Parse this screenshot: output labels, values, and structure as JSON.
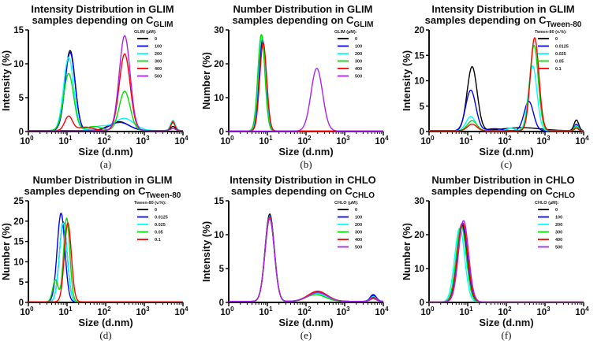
{
  "chart_data": [
    {
      "id": "a",
      "panel_label": "(a)",
      "type": "line",
      "title_line1": "Intensity Distribution in GLIM",
      "title_line2": "samples depending on C",
      "title_sub": "GLIM",
      "xlabel": "Size (d.nm)",
      "ylabel": "Intensity (%)",
      "xscale": "log",
      "xlim": [
        1,
        10000
      ],
      "ylim": [
        0,
        15
      ],
      "yticks": [
        0,
        5,
        10,
        15
      ],
      "legend_title": "GLIM (µM):",
      "legend_position": "top-right",
      "series": [
        {
          "name": "0",
          "color": "#000000",
          "peaks": [
            [
              12,
              11.8,
              0.13
            ],
            [
              220,
              1.3,
              0.25
            ],
            [
              5500,
              0.6,
              0.06
            ]
          ]
        },
        {
          "name": "100",
          "color": "#0000ff",
          "peaks": [
            [
              12,
              11.5,
              0.13
            ],
            [
              230,
              1.2,
              0.25
            ],
            [
              5500,
              1.4,
              0.06
            ]
          ]
        },
        {
          "name": "200",
          "color": "#00ffff",
          "peaks": [
            [
              11,
              10.8,
              0.13
            ],
            [
              300,
              1.8,
              0.25
            ],
            [
              5500,
              1.5,
              0.06
            ],
            [
              70,
              0.6,
              0.2
            ]
          ]
        },
        {
          "name": "300",
          "color": "#00dd00",
          "peaks": [
            [
              11,
              8.4,
              0.13
            ],
            [
              310,
              5.8,
              0.14
            ],
            [
              5500,
              1.1,
              0.06
            ],
            [
              50,
              0.6,
              0.2
            ]
          ]
        },
        {
          "name": "400",
          "color": "#ff0000",
          "peaks": [
            [
              11,
              2.1,
              0.1
            ],
            [
              310,
              11.3,
              0.14
            ],
            [
              5500,
              1.3,
              0.05
            ],
            [
              30,
              0.5,
              0.2
            ]
          ]
        },
        {
          "name": "500",
          "color": "#aa22ee",
          "peaks": [
            [
              310,
              14.0,
              0.14
            ],
            [
              5500,
              0.3,
              0.06
            ]
          ]
        }
      ]
    },
    {
      "id": "b",
      "panel_label": "(b)",
      "type": "line",
      "title_line1": "Number Distribution in GLIM",
      "title_line2": "samples depending on C",
      "title_sub": "GLIM",
      "xlabel": "Size (d.nm)",
      "ylabel": "Number (%)",
      "xscale": "log",
      "xlim": [
        1,
        10000
      ],
      "ylim": [
        0,
        30
      ],
      "yticks": [
        0,
        10,
        20,
        30
      ],
      "legend_title": "GLIM (µM):",
      "legend_position": "top-right",
      "series": [
        {
          "name": "0",
          "color": "#000000",
          "peaks": [
            [
              7.5,
              26.5,
              0.09
            ]
          ]
        },
        {
          "name": "100",
          "color": "#0000ff",
          "peaks": [
            [
              7.5,
              27,
              0.09
            ]
          ]
        },
        {
          "name": "200",
          "color": "#00ffff",
          "peaks": [
            [
              7.2,
              28,
              0.09
            ]
          ]
        },
        {
          "name": "300",
          "color": "#00dd00",
          "peaks": [
            [
              7,
              28.5,
              0.09
            ]
          ]
        },
        {
          "name": "400",
          "color": "#ff0000",
          "peaks": [
            [
              7.8,
              26,
              0.09
            ]
          ]
        },
        {
          "name": "500",
          "color": "#aa22ee",
          "peaks": [
            [
              190,
              18.5,
              0.15
            ]
          ]
        }
      ]
    },
    {
      "id": "c",
      "panel_label": "(c)",
      "type": "line",
      "title_line1": "Intensity Distribution in GLIM",
      "title_line2": "samples depending on C",
      "title_sub": "Tween-80",
      "xlabel": "Size (d.nm)",
      "ylabel": "Intensity (%)",
      "xscale": "log",
      "xlim": [
        1,
        10000
      ],
      "ylim": [
        0,
        20
      ],
      "yticks": [
        0,
        5,
        10,
        15,
        20
      ],
      "legend_title": "Tween-80 (v.%):",
      "legend_position": "top-right",
      "series": [
        {
          "name": "0",
          "color": "#000000",
          "peaks": [
            [
              13,
              12.6,
              0.13
            ],
            [
              250,
              0.6,
              0.5
            ],
            [
              6500,
              2.1,
              0.06
            ]
          ]
        },
        {
          "name": "0.0125",
          "color": "#0000ff",
          "peaks": [
            [
              12,
              8.0,
              0.13
            ],
            [
              380,
              5.8,
              0.12
            ],
            [
              6500,
              1.3,
              0.05
            ],
            [
              50,
              0.4,
              0.2
            ]
          ]
        },
        {
          "name": "0.025",
          "color": "#00ffff",
          "peaks": [
            [
              12,
              2.8,
              0.12
            ],
            [
              480,
              12.8,
              0.11
            ],
            [
              6500,
              1.0,
              0.05
            ],
            [
              130,
              0.5,
              0.1
            ]
          ]
        },
        {
          "name": "0.05",
          "color": "#00dd00",
          "peaks": [
            [
              13,
              2.0,
              0.12
            ],
            [
              520,
              16.8,
              0.11
            ],
            [
              6500,
              0.8,
              0.05
            ]
          ]
        },
        {
          "name": "0.1",
          "color": "#ff0000",
          "peaks": [
            [
              13,
              1.3,
              0.12
            ],
            [
              540,
              18.3,
              0.11
            ],
            [
              6500,
              0.5,
              0.05
            ]
          ]
        }
      ]
    },
    {
      "id": "d",
      "panel_label": "(d)",
      "type": "line",
      "title_line1": "Number Distribution in GLIM",
      "title_line2": "samples depending on C",
      "title_sub": "Tween-80",
      "xlabel": "Size (d.nm)",
      "ylabel": "Number (%)",
      "xscale": "log",
      "xlim": [
        1,
        10000
      ],
      "ylim": [
        0,
        25
      ],
      "yticks": [
        0,
        5,
        10,
        15,
        20,
        25
      ],
      "legend_title": "Tween-80 (v.%):",
      "legend_position": "top-right",
      "series": [
        {
          "name": "0",
          "color": "#000000",
          "peaks": [
            [
              8,
              19.6,
              0.1
            ]
          ]
        },
        {
          "name": "0.0125",
          "color": "#0000ff",
          "peaks": [
            [
              7,
              21.8,
              0.1
            ]
          ]
        },
        {
          "name": "0.025",
          "color": "#00ffff",
          "peaks": [
            [
              8,
              19.4,
              0.1
            ]
          ]
        },
        {
          "name": "0.05",
          "color": "#00dd00",
          "peaks": [
            [
              9.8,
              20.6,
              0.08
            ],
            [
              5,
              5.4,
              0.07
            ]
          ]
        },
        {
          "name": "0.1",
          "color": "#ff0000",
          "peaks": [
            [
              10.5,
              19.4,
              0.09
            ]
          ]
        }
      ]
    },
    {
      "id": "e",
      "panel_label": "(e)",
      "type": "line",
      "title_line1": "Intensity Distribution in CHLO",
      "title_line2": "samples depending on C",
      "title_sub": "CHLO",
      "xlabel": "Size (d.nm)",
      "ylabel": "Intensity (%)",
      "xscale": "log",
      "xlim": [
        1,
        10000
      ],
      "ylim": [
        0,
        15
      ],
      "yticks": [
        0,
        5,
        10,
        15
      ],
      "legend_title": "CHLO (µM):",
      "legend_position": "top-right",
      "series": [
        {
          "name": "0",
          "color": "#000000",
          "peaks": [
            [
              11.5,
              12.9,
              0.12
            ],
            [
              200,
              1.3,
              0.25
            ],
            [
              5500,
              0.9,
              0.08
            ]
          ]
        },
        {
          "name": "100",
          "color": "#0000ff",
          "peaks": [
            [
              11.5,
              12.6,
              0.12
            ],
            [
              200,
              1.4,
              0.25
            ],
            [
              5500,
              1.0,
              0.08
            ]
          ]
        },
        {
          "name": "200",
          "color": "#00ffff",
          "peaks": [
            [
              11.5,
              12.5,
              0.12
            ],
            [
              180,
              1.2,
              0.25
            ],
            [
              5500,
              0.7,
              0.08
            ]
          ]
        },
        {
          "name": "300",
          "color": "#00dd00",
          "peaks": [
            [
              11.5,
              12.3,
              0.12
            ],
            [
              180,
              1.0,
              0.25
            ],
            [
              5500,
              0.5,
              0.08
            ]
          ]
        },
        {
          "name": "400",
          "color": "#ff0000",
          "peaks": [
            [
              11.5,
              12.4,
              0.12
            ],
            [
              200,
              1.5,
              0.25
            ],
            [
              5500,
              0.6,
              0.08
            ]
          ]
        },
        {
          "name": "500",
          "color": "#aa22ee",
          "peaks": [
            [
              11.5,
              12.2,
              0.12
            ],
            [
              200,
              1.3,
              0.25
            ],
            [
              5500,
              0.4,
              0.08
            ]
          ]
        }
      ]
    },
    {
      "id": "f",
      "panel_label": "(f)",
      "type": "line",
      "title_line1": "Number Distribution in CHLO",
      "title_line2": "samples depending on C",
      "title_sub": "CHLO",
      "xlabel": "Size (d.nm)",
      "ylabel": "Number (%)",
      "xscale": "log",
      "xlim": [
        1,
        10000
      ],
      "ylim": [
        0,
        30
      ],
      "yticks": [
        0,
        10,
        20,
        30
      ],
      "legend_title": "CHLO (µM):",
      "legend_position": "top-right",
      "series": [
        {
          "name": "0",
          "color": "#000000",
          "peaks": [
            [
              7,
              22.8,
              0.13
            ]
          ]
        },
        {
          "name": "100",
          "color": "#0000ff",
          "peaks": [
            [
              7.2,
              23.2,
              0.13
            ]
          ]
        },
        {
          "name": "200",
          "color": "#00ffff",
          "peaks": [
            [
              6.2,
              21.8,
              0.13
            ]
          ]
        },
        {
          "name": "300",
          "color": "#00dd00",
          "peaks": [
            [
              6.8,
              22.5,
              0.13
            ]
          ]
        },
        {
          "name": "400",
          "color": "#ff0000",
          "peaks": [
            [
              7.4,
              23.4,
              0.13
            ]
          ]
        },
        {
          "name": "500",
          "color": "#aa22ee",
          "peaks": [
            [
              7.8,
              24.0,
              0.13
            ]
          ]
        }
      ]
    }
  ]
}
